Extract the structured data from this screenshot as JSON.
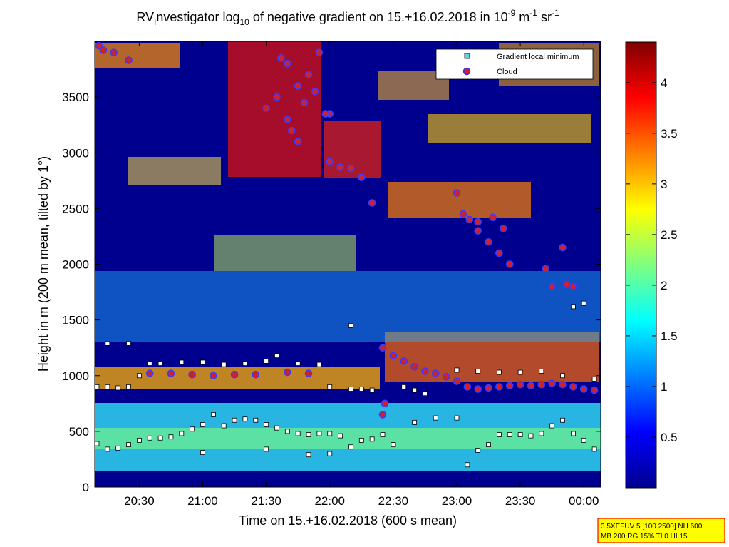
{
  "chart_data": {
    "type": "heatmap",
    "title": {
      "prefix": "RV",
      "prefix_sub": "I",
      "main": "nvestigator log",
      "log_sub": "10",
      "mid": " of negative gradient on 15.+16.02.2018 in 10",
      "exp1": "-9",
      "unit1": " m",
      "exp2": "-1",
      "unit2": " sr",
      "exp3": "-1"
    },
    "xlabel": "Time on 15.+16.02.2018 (600 s mean)",
    "ylabel": "Height in m (200 m mean, tilted by 1°)",
    "x_range": [
      "20:09",
      "00:08"
    ],
    "ylim": [
      0,
      4000
    ],
    "x_ticks": [
      "20:30",
      "21:00",
      "21:30",
      "22:00",
      "22:30",
      "23:00",
      "23:30",
      "00:00"
    ],
    "y_ticks": [
      "0",
      "500",
      "1000",
      "1500",
      "2000",
      "2500",
      "3000",
      "3500"
    ],
    "colorbar": {
      "range": [
        0,
        4.4
      ],
      "ticks": [
        "0.5",
        "1",
        "1.5",
        "2",
        "2.5",
        "3",
        "3.5",
        "4"
      ],
      "colormap": "jet"
    },
    "legend": {
      "position": "top-right",
      "entries": [
        {
          "name": "Gradient local minimum",
          "marker": "square",
          "color": "#5fd3e6"
        },
        {
          "name": "Cloud",
          "marker": "circle",
          "color": "#d0202a"
        }
      ]
    },
    "series": [
      {
        "name": "Gradient local minimum",
        "points": [
          [
            "20:10",
            390
          ],
          [
            "20:15",
            340
          ],
          [
            "20:20",
            350
          ],
          [
            "20:25",
            380
          ],
          [
            "20:30",
            420
          ],
          [
            "20:35",
            440
          ],
          [
            "20:40",
            440
          ],
          [
            "20:45",
            450
          ],
          [
            "20:50",
            480
          ],
          [
            "20:55",
            520
          ],
          [
            "21:00",
            560
          ],
          [
            "21:05",
            650
          ],
          [
            "21:10",
            550
          ],
          [
            "21:15",
            600
          ],
          [
            "21:20",
            610
          ],
          [
            "21:25",
            600
          ],
          [
            "21:30",
            560
          ],
          [
            "21:35",
            530
          ],
          [
            "21:40",
            500
          ],
          [
            "21:45",
            480
          ],
          [
            "21:50",
            470
          ],
          [
            "21:55",
            480
          ],
          [
            "22:00",
            480
          ],
          [
            "22:05",
            460
          ],
          [
            "22:10",
            360
          ],
          [
            "22:15",
            420
          ],
          [
            "22:20",
            430
          ],
          [
            "22:25",
            470
          ],
          [
            "22:30",
            380
          ],
          [
            "22:40",
            580
          ],
          [
            "22:50",
            620
          ],
          [
            "23:00",
            620
          ],
          [
            "23:05",
            200
          ],
          [
            "23:10",
            330
          ],
          [
            "23:15",
            380
          ],
          [
            "23:20",
            470
          ],
          [
            "23:25",
            470
          ],
          [
            "23:30",
            470
          ],
          [
            "23:35",
            460
          ],
          [
            "23:40",
            480
          ],
          [
            "23:45",
            550
          ],
          [
            "23:50",
            600
          ],
          [
            "23:55",
            480
          ],
          [
            "00:00",
            420
          ],
          [
            "00:05",
            340
          ],
          [
            "20:10",
            900
          ],
          [
            "20:15",
            900
          ],
          [
            "20:20",
            890
          ],
          [
            "20:25",
            900
          ],
          [
            "20:30",
            1000
          ],
          [
            "20:35",
            1110
          ],
          [
            "20:40",
            1110
          ],
          [
            "20:50",
            1120
          ],
          [
            "21:00",
            1120
          ],
          [
            "21:10",
            1100
          ],
          [
            "21:20",
            1110
          ],
          [
            "21:30",
            1130
          ],
          [
            "21:35",
            1180
          ],
          [
            "21:45",
            1110
          ],
          [
            "21:55",
            1100
          ],
          [
            "22:00",
            900
          ],
          [
            "22:10",
            880
          ],
          [
            "22:15",
            880
          ],
          [
            "22:20",
            870
          ],
          [
            "22:25",
            1270
          ],
          [
            "22:35",
            900
          ],
          [
            "22:40",
            870
          ],
          [
            "22:45",
            840
          ],
          [
            "23:00",
            1050
          ],
          [
            "23:10",
            1040
          ],
          [
            "23:20",
            1030
          ],
          [
            "23:30",
            1030
          ],
          [
            "23:40",
            1040
          ],
          [
            "23:50",
            1000
          ],
          [
            "23:55",
            1620
          ],
          [
            "00:00",
            1650
          ],
          [
            "00:05",
            970
          ],
          [
            "20:25",
            1290
          ],
          [
            "20:15",
            1290
          ],
          [
            "22:10",
            1450
          ],
          [
            "21:00",
            310
          ],
          [
            "21:30",
            340
          ],
          [
            "21:50",
            290
          ],
          [
            "22:00",
            300
          ],
          [
            "22:30",
            380
          ]
        ]
      },
      {
        "name": "Cloud",
        "points": [
          [
            "20:11",
            3960
          ],
          [
            "20:13",
            3920
          ],
          [
            "20:18",
            3900
          ],
          [
            "20:25",
            3830
          ],
          [
            "20:35",
            1020
          ],
          [
            "20:45",
            1020
          ],
          [
            "20:55",
            1010
          ],
          [
            "21:05",
            1000
          ],
          [
            "21:15",
            1010
          ],
          [
            "21:25",
            1010
          ],
          [
            "21:40",
            1030
          ],
          [
            "21:50",
            1020
          ],
          [
            "21:35",
            3500
          ],
          [
            "21:40",
            3300
          ],
          [
            "21:45",
            3600
          ],
          [
            "21:40",
            3800
          ],
          [
            "21:30",
            3400
          ],
          [
            "21:45",
            3100
          ],
          [
            "21:50",
            3700
          ],
          [
            "21:55",
            3900
          ],
          [
            "21:37",
            3850
          ],
          [
            "21:42",
            3200
          ],
          [
            "21:48",
            3450
          ],
          [
            "21:53",
            3550
          ],
          [
            "22:00",
            3350
          ],
          [
            "22:00",
            2920
          ],
          [
            "22:05",
            2870
          ],
          [
            "22:10",
            2860
          ],
          [
            "22:15",
            2780
          ],
          [
            "22:20",
            2550
          ],
          [
            "22:25",
            1250
          ],
          [
            "22:30",
            1180
          ],
          [
            "22:35",
            1130
          ],
          [
            "22:40",
            1080
          ],
          [
            "22:45",
            1040
          ],
          [
            "22:50",
            1020
          ],
          [
            "22:55",
            990
          ],
          [
            "23:00",
            950
          ],
          [
            "23:05",
            900
          ],
          [
            "23:10",
            880
          ],
          [
            "23:15",
            890
          ],
          [
            "23:20",
            900
          ],
          [
            "23:25",
            910
          ],
          [
            "23:30",
            920
          ],
          [
            "23:35",
            910
          ],
          [
            "23:40",
            920
          ],
          [
            "23:45",
            930
          ],
          [
            "23:50",
            920
          ],
          [
            "23:55",
            900
          ],
          [
            "00:00",
            880
          ],
          [
            "00:05",
            870
          ],
          [
            "22:26",
            750
          ],
          [
            "22:25",
            650
          ],
          [
            "23:00",
            2640
          ],
          [
            "23:03",
            2450
          ],
          [
            "23:06",
            2400
          ],
          [
            "23:10",
            2300
          ],
          [
            "23:15",
            2200
          ],
          [
            "23:20",
            2100
          ],
          [
            "23:25",
            2000
          ],
          [
            "23:42",
            1960
          ],
          [
            "23:45",
            1800
          ],
          [
            "23:50",
            2150
          ],
          [
            "23:52",
            1820
          ],
          [
            "23:55",
            1800
          ],
          [
            "23:10",
            2380
          ],
          [
            "23:17",
            2420
          ],
          [
            "23:22",
            2320
          ],
          [
            "21:58",
            3350
          ]
        ]
      }
    ],
    "info_box": {
      "line1": "3.5XEFUV 5 [100 2500] NH 600",
      "line2": "MB 200 RG 15% TI 0 HI 15",
      "border_color": "#ff0000",
      "fill_color": "#ffff00"
    }
  }
}
